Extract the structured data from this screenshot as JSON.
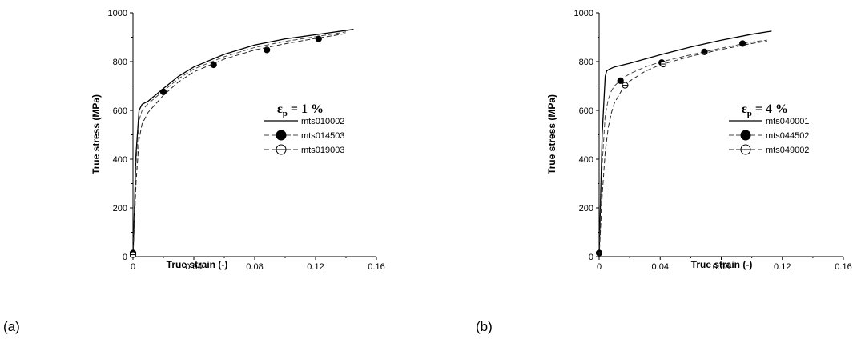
{
  "chart_data": [
    {
      "type": "line",
      "panel_label": "(a)",
      "xlabel": "True strain (-)",
      "ylabel": "True stress (MPa)",
      "xlim": [
        0,
        0.16
      ],
      "ylim": [
        0,
        1000
      ],
      "xticks": [
        "0",
        "0.04",
        "0.08",
        "0.12",
        "0.16"
      ],
      "yticks": [
        "0",
        "200",
        "400",
        "600",
        "800",
        "1000"
      ],
      "grid": false,
      "legend_position": "right-middle",
      "legend_title": {
        "main": "ε",
        "sub": "p",
        "rest": " = 1 %"
      },
      "series": [
        {
          "name": "mts010002",
          "line": "solid",
          "marker": "none",
          "x": [
            0,
            0.002,
            0.004,
            0.006,
            0.01,
            0.02,
            0.03,
            0.04,
            0.06,
            0.08,
            0.1,
            0.12,
            0.145
          ],
          "y": [
            0,
            420,
            600,
            625,
            638,
            690,
            740,
            778,
            830,
            868,
            893,
            910,
            932
          ]
        },
        {
          "name": "mts014503",
          "line": "dashed",
          "marker": "filled-circle",
          "x": [
            0,
            0.002,
            0.004,
            0.006,
            0.01,
            0.02,
            0.03,
            0.04,
            0.06,
            0.08,
            0.1,
            0.12,
            0.14
          ],
          "y": [
            0,
            380,
            560,
            600,
            628,
            680,
            730,
            770,
            820,
            858,
            883,
            902,
            922
          ],
          "markers": {
            "x": [
              0,
              0.02,
              0.053,
              0.088,
              0.122
            ],
            "y": [
              15,
              676,
              787,
              848,
              893
            ]
          }
        },
        {
          "name": "mts019003",
          "line": "dashed",
          "marker": "open-circle",
          "x": [
            0,
            0.002,
            0.004,
            0.006,
            0.01,
            0.02,
            0.03,
            0.04,
            0.06,
            0.08,
            0.1,
            0.12,
            0.14
          ],
          "y": [
            0,
            300,
            480,
            545,
            592,
            662,
            717,
            758,
            810,
            848,
            873,
            895,
            915
          ],
          "markers": {
            "x": [
              0
            ],
            "y": [
              8
            ]
          }
        }
      ]
    },
    {
      "type": "line",
      "panel_label": "(b)",
      "xlabel": "True strain (-)",
      "ylabel": "True stress (MPa)",
      "xlim": [
        0,
        0.16
      ],
      "ylim": [
        0,
        1000
      ],
      "xticks": [
        "0",
        "0.04",
        "0.08",
        "0.12",
        "0.16"
      ],
      "yticks": [
        "0",
        "200",
        "400",
        "600",
        "800",
        "1000"
      ],
      "grid": false,
      "legend_position": "right-middle",
      "legend_title": {
        "main": "ε",
        "sub": "p",
        "rest": " = 4 %"
      },
      "series": [
        {
          "name": "mts040001",
          "line": "solid",
          "marker": "none",
          "x": [
            0,
            0.002,
            0.004,
            0.005,
            0.007,
            0.01,
            0.02,
            0.04,
            0.06,
            0.08,
            0.1,
            0.113
          ],
          "y": [
            0,
            500,
            740,
            762,
            770,
            778,
            793,
            828,
            860,
            888,
            912,
            925
          ]
        },
        {
          "name": "mts044502",
          "line": "dashed",
          "marker": "filled-circle",
          "x": [
            0,
            0.002,
            0.004,
            0.006,
            0.008,
            0.01,
            0.015,
            0.02,
            0.03,
            0.04,
            0.06,
            0.08,
            0.1,
            0.11
          ],
          "y": [
            0,
            380,
            580,
            645,
            680,
            700,
            730,
            750,
            778,
            798,
            828,
            855,
            880,
            888
          ],
          "markers": {
            "x": [
              0,
              0.014,
              0.041,
              0.069,
              0.094
            ],
            "y": [
              15,
              722,
              796,
              840,
              874
            ]
          }
        },
        {
          "name": "mts049002",
          "line": "dashed",
          "marker": "open-circle",
          "x": [
            0,
            0.002,
            0.004,
            0.006,
            0.008,
            0.01,
            0.015,
            0.02,
            0.03,
            0.04,
            0.06,
            0.08,
            0.1,
            0.11
          ],
          "y": [
            0,
            250,
            430,
            530,
            590,
            630,
            685,
            720,
            760,
            787,
            822,
            850,
            874,
            884
          ],
          "markers": {
            "x": [
              0.017,
              0.042
            ],
            "y": [
              703,
              790
            ]
          }
        }
      ]
    }
  ]
}
